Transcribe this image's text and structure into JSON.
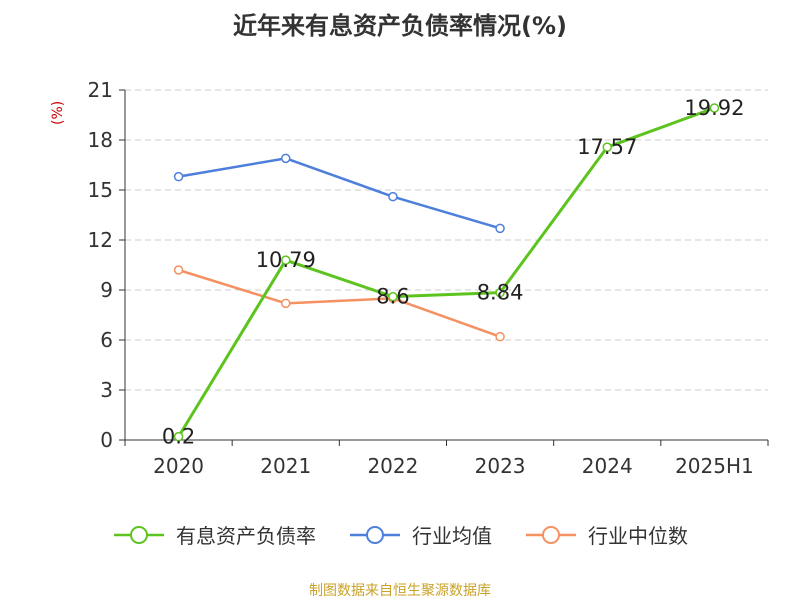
{
  "title": "近年来有息资产负债率情况(%)",
  "unit": "(%)",
  "source": "制图数据来自恒生聚源数据库",
  "colors": {
    "series_main": "#5dc41f",
    "series_avg": "#4d7fdb",
    "series_median": "#f59161",
    "grid": "#cccccc",
    "axis": "#333333",
    "unit": "#cc0000",
    "source": "#c9a227"
  },
  "chart_data": {
    "type": "line",
    "title": "近年来有息资产负债率情况(%)",
    "categories": [
      "2020",
      "2021",
      "2022",
      "2023",
      "2024",
      "2025H1"
    ],
    "ylim": [
      0,
      21
    ],
    "yticks": [
      0,
      3,
      6,
      9,
      12,
      15,
      18,
      21
    ],
    "grid": true,
    "legend_position": "bottom",
    "series": [
      {
        "name": "有息资产负债率",
        "color": "#5dc41f",
        "values": [
          0.2,
          10.79,
          8.6,
          8.84,
          17.57,
          19.92
        ],
        "show_labels": true
      },
      {
        "name": "行业均值",
        "color": "#4d7fdb",
        "values": [
          15.8,
          16.9,
          14.6,
          12.7,
          null,
          null
        ],
        "show_labels": false
      },
      {
        "name": "行业中位数",
        "color": "#f59161",
        "values": [
          10.2,
          8.2,
          8.5,
          6.2,
          null,
          null
        ],
        "show_labels": false
      }
    ]
  }
}
